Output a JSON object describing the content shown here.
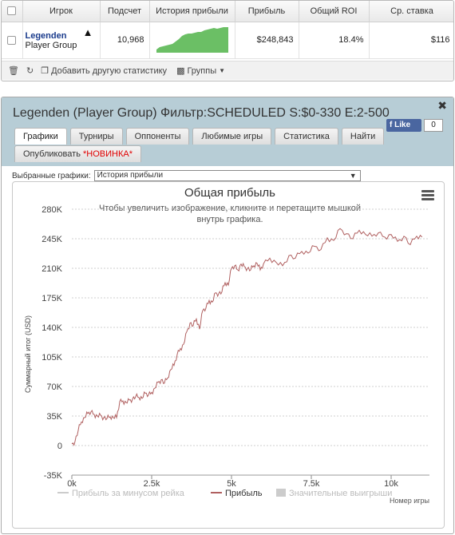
{
  "table": {
    "headers": [
      "",
      "Игрок",
      "Подсчет",
      "История прибыли",
      "Прибыль",
      "Общий ROI",
      "Ср. ставка"
    ],
    "row": {
      "player_name": "Legenden",
      "player_group": "Player Group",
      "count": "10,968",
      "profit": "$248,843",
      "roi": "18.4%",
      "avg_stake": "$116"
    }
  },
  "toolbar": {
    "add_stats_label": "Добавить другую статистику",
    "groups_label": "Группы"
  },
  "panel": {
    "title": "Legenden (Player Group) Фильтр:SCHEDULED S:$0-330 E:2-500",
    "like_label": "Like",
    "like_count": "0",
    "tabs_row1": [
      "Графики",
      "Турниры",
      "Оппоненты",
      "Любимые игры",
      "Статистика",
      "Найти"
    ],
    "publish_label": "Опубликовать",
    "new_badge": "*НОВИНКА*",
    "selector_label": "Выбранные графики:",
    "selector_value": "История прибыли"
  },
  "colors": {
    "profit_line": "#b06060",
    "sparkline_fill": "#6bbf65",
    "header_bg": "#b7cdd6"
  },
  "chart_data": {
    "type": "line",
    "title": "Общая прибыль",
    "subtitle": "Чтобы увеличить изображение, кликните и перетащите мышкой внутрь графика.",
    "ylabel": "Суммарный итог (USD)",
    "xlabel": "Номер игры",
    "ylim": [
      -35000,
      280000
    ],
    "xlim": [
      0,
      11200
    ],
    "y_ticks": [
      -35000,
      0,
      35000,
      70000,
      105000,
      140000,
      175000,
      210000,
      245000,
      280000
    ],
    "y_tick_labels": [
      "-35K",
      "0",
      "35K",
      "70K",
      "105K",
      "140K",
      "175K",
      "210K",
      "245K",
      "280K"
    ],
    "x_ticks": [
      0,
      2500,
      5000,
      7500,
      10000
    ],
    "x_tick_labels": [
      "0k",
      "2.5k",
      "5k",
      "7.5k",
      "10k"
    ],
    "legend": [
      "Прибыль за минусом рейка",
      "Прибыль",
      "Значительные выигрыши"
    ],
    "legend_placement": "bottom",
    "series": [
      {
        "name": "Прибыль",
        "x": [
          0,
          100,
          200,
          300,
          400,
          500,
          600,
          700,
          800,
          900,
          1000,
          1100,
          1200,
          1300,
          1400,
          1500,
          1600,
          1700,
          1800,
          1900,
          2000,
          2100,
          2200,
          2300,
          2400,
          2500,
          2600,
          2700,
          2800,
          2900,
          3000,
          3100,
          3200,
          3300,
          3400,
          3500,
          3600,
          3700,
          3800,
          3900,
          4000,
          4100,
          4200,
          4300,
          4400,
          4500,
          4600,
          4700,
          4800,
          4900,
          5000,
          5100,
          5200,
          5300,
          5400,
          5500,
          5600,
          5700,
          5800,
          5900,
          6000,
          6200,
          6400,
          6600,
          6800,
          7000,
          7200,
          7400,
          7600,
          7800,
          8000,
          8200,
          8400,
          8600,
          8800,
          9000,
          9200,
          9400,
          9600,
          9800,
          10000,
          10200,
          10400,
          10600,
          10800,
          10968
        ],
        "values": [
          2000,
          5000,
          18000,
          28000,
          33000,
          38000,
          40000,
          37000,
          35000,
          36000,
          33000,
          32000,
          34000,
          33000,
          33000,
          52000,
          53000,
          51000,
          54000,
          55000,
          58000,
          57000,
          56000,
          62000,
          60000,
          63000,
          68000,
          75000,
          78000,
          74000,
          80000,
          90000,
          95000,
          108000,
          115000,
          120000,
          135000,
          145000,
          142000,
          150000,
          138000,
          160000,
          163000,
          172000,
          170000,
          181000,
          180000,
          182000,
          193000,
          190000,
          210000,
          213000,
          208000,
          215000,
          212000,
          210000,
          208000,
          213000,
          216000,
          208000,
          215000,
          222000,
          217000,
          213000,
          225000,
          222000,
          230000,
          228000,
          236000,
          232000,
          246000,
          243000,
          257000,
          251000,
          245000,
          255000,
          250000,
          248000,
          252000,
          247000,
          250000,
          242000,
          248000,
          238000,
          248000,
          247000
        ]
      }
    ]
  }
}
